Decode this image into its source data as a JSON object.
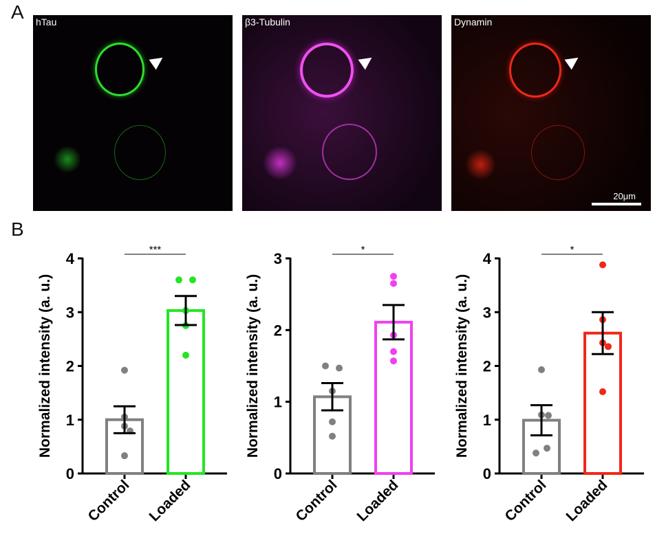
{
  "panel_labels": {
    "a": "A",
    "b": "B"
  },
  "images": [
    {
      "label": "hTau",
      "color": "#2be02b"
    },
    {
      "label": "β3-Tubulin",
      "color": "#e040e0"
    },
    {
      "label": "Dynamin",
      "color": "#f02818",
      "scale_bar": "20μm"
    }
  ],
  "chart_data": [
    {
      "type": "bar",
      "ylabel": "Normalized intensity (a. u.)",
      "categories": [
        "Control",
        "Loaded"
      ],
      "ylim": [
        0,
        4
      ],
      "yticks": [
        "0",
        "1",
        "2",
        "3",
        "4"
      ],
      "significance": "***",
      "colors": [
        "#808080",
        "#22e622"
      ],
      "means": [
        1.0,
        3.03
      ],
      "sem": [
        0.25,
        0.27
      ],
      "points": [
        [
          1.92,
          1.05,
          0.88,
          0.79,
          0.33
        ],
        [
          3.6,
          3.6,
          3.03,
          2.75,
          2.2
        ]
      ]
    },
    {
      "type": "bar",
      "ylabel": "Normalized intensity (a. u.)",
      "categories": [
        "Control",
        "Loaded"
      ],
      "ylim": [
        0,
        3
      ],
      "yticks": [
        "0",
        "1",
        "2",
        "3"
      ],
      "significance": "*",
      "colors": [
        "#808080",
        "#f040f0"
      ],
      "means": [
        1.07,
        2.11
      ],
      "sem": [
        0.19,
        0.24
      ],
      "points": [
        [
          1.5,
          1.47,
          1.15,
          0.72,
          0.52
        ],
        [
          2.75,
          2.65,
          1.93,
          1.7,
          1.57
        ]
      ]
    },
    {
      "type": "bar",
      "ylabel": "Normalized intensity (a. u.)",
      "categories": [
        "Control",
        "Loaded"
      ],
      "ylim": [
        0,
        4
      ],
      "yticks": [
        "0",
        "1",
        "2",
        "3",
        "4"
      ],
      "significance": "*",
      "colors": [
        "#808080",
        "#f02818"
      ],
      "means": [
        0.99,
        2.61
      ],
      "sem": [
        0.28,
        0.39
      ],
      "points": [
        [
          1.93,
          1.08,
          1.09,
          0.47,
          0.38
        ],
        [
          3.88,
          2.86,
          2.43,
          2.36,
          1.52
        ]
      ]
    }
  ]
}
